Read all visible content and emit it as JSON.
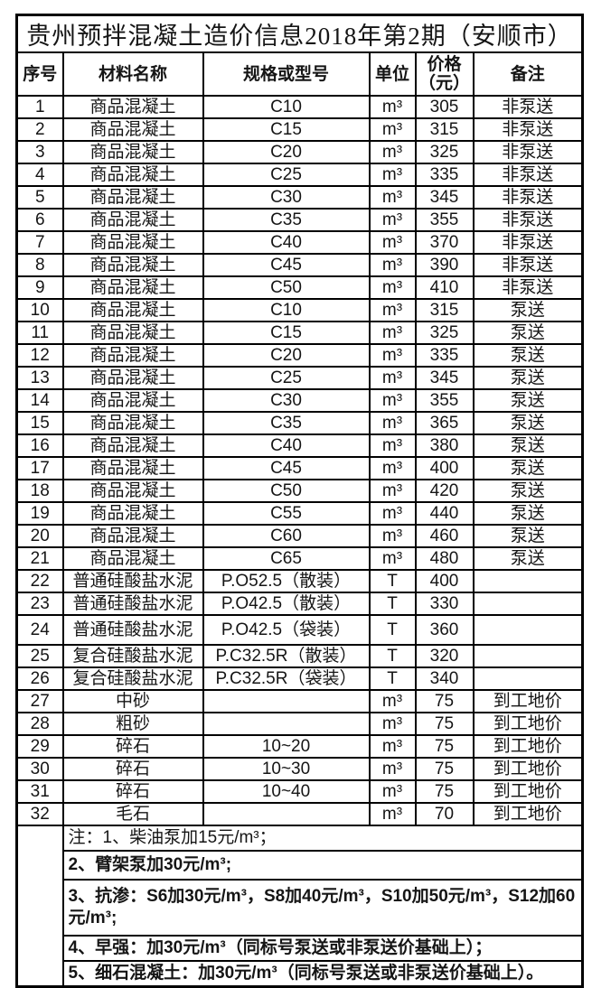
{
  "title": "贵州预拌混凝土造价信息2018年第2期（安顺市）",
  "columns": {
    "seq": "序号",
    "material": "材料名称",
    "spec": "规格或型号",
    "unit": "单位",
    "price_line1": "价格",
    "price_line2": "（元）",
    "remark": "备注"
  },
  "rows": [
    {
      "seq": "1",
      "material": "商品混凝土",
      "spec": "C10",
      "unit": "m³",
      "price": "305",
      "remark": "非泵送"
    },
    {
      "seq": "2",
      "material": "商品混凝土",
      "spec": "C15",
      "unit": "m³",
      "price": "315",
      "remark": "非泵送"
    },
    {
      "seq": "3",
      "material": "商品混凝土",
      "spec": "C20",
      "unit": "m³",
      "price": "325",
      "remark": "非泵送"
    },
    {
      "seq": "4",
      "material": "商品混凝土",
      "spec": "C25",
      "unit": "m³",
      "price": "335",
      "remark": "非泵送"
    },
    {
      "seq": "5",
      "material": "商品混凝土",
      "spec": "C30",
      "unit": "m³",
      "price": "345",
      "remark": "非泵送"
    },
    {
      "seq": "6",
      "material": "商品混凝土",
      "spec": "C35",
      "unit": "m³",
      "price": "355",
      "remark": "非泵送"
    },
    {
      "seq": "7",
      "material": "商品混凝土",
      "spec": "C40",
      "unit": "m³",
      "price": "370",
      "remark": "非泵送"
    },
    {
      "seq": "8",
      "material": "商品混凝土",
      "spec": "C45",
      "unit": "m³",
      "price": "390",
      "remark": "非泵送"
    },
    {
      "seq": "9",
      "material": "商品混凝土",
      "spec": "C50",
      "unit": "m³",
      "price": "410",
      "remark": "非泵送"
    },
    {
      "seq": "10",
      "material": "商品混凝土",
      "spec": "C10",
      "unit": "m³",
      "price": "315",
      "remark": "泵送"
    },
    {
      "seq": "11",
      "material": "商品混凝土",
      "spec": "C15",
      "unit": "m³",
      "price": "325",
      "remark": "泵送"
    },
    {
      "seq": "12",
      "material": "商品混凝土",
      "spec": "C20",
      "unit": "m³",
      "price": "335",
      "remark": "泵送"
    },
    {
      "seq": "13",
      "material": "商品混凝土",
      "spec": "C25",
      "unit": "m³",
      "price": "345",
      "remark": "泵送"
    },
    {
      "seq": "14",
      "material": "商品混凝土",
      "spec": "C30",
      "unit": "m³",
      "price": "355",
      "remark": "泵送"
    },
    {
      "seq": "15",
      "material": "商品混凝土",
      "spec": "C35",
      "unit": "m³",
      "price": "365",
      "remark": "泵送"
    },
    {
      "seq": "16",
      "material": "商品混凝土",
      "spec": "C40",
      "unit": "m³",
      "price": "380",
      "remark": "泵送"
    },
    {
      "seq": "17",
      "material": "商品混凝土",
      "spec": "C45",
      "unit": "m³",
      "price": "400",
      "remark": "泵送"
    },
    {
      "seq": "18",
      "material": "商品混凝土",
      "spec": "C50",
      "unit": "m³",
      "price": "420",
      "remark": "泵送"
    },
    {
      "seq": "19",
      "material": "商品混凝土",
      "spec": "C55",
      "unit": "m³",
      "price": "440",
      "remark": "泵送"
    },
    {
      "seq": "20",
      "material": "商品混凝土",
      "spec": "C60",
      "unit": "m³",
      "price": "460",
      "remark": "泵送"
    },
    {
      "seq": "21",
      "material": "商品混凝土",
      "spec": "C65",
      "unit": "m³",
      "price": "480",
      "remark": "泵送"
    },
    {
      "seq": "22",
      "material": "普通硅酸盐水泥",
      "spec": "P.O52.5（散装）",
      "unit": "T",
      "price": "400",
      "remark": ""
    },
    {
      "seq": "23",
      "material": "普通硅酸盐水泥",
      "spec": "P.O42.5（散装）",
      "unit": "T",
      "price": "330",
      "remark": ""
    },
    {
      "seq": "24",
      "material": "普通硅酸盐水泥",
      "spec": "P.O42.5（袋装）",
      "unit": "T",
      "price": "360",
      "remark": ""
    },
    {
      "seq": "25",
      "material": "复合硅酸盐水泥",
      "spec": "P.C32.5R（散装）",
      "unit": "T",
      "price": "320",
      "remark": ""
    },
    {
      "seq": "26",
      "material": "复合硅酸盐水泥",
      "spec": "P.C32.5R（袋装）",
      "unit": "T",
      "price": "340",
      "remark": ""
    },
    {
      "seq": "27",
      "material": "中砂",
      "spec": "",
      "unit": "m³",
      "price": "75",
      "remark": "到工地价"
    },
    {
      "seq": "28",
      "material": "粗砂",
      "spec": "",
      "unit": "m³",
      "price": "75",
      "remark": "到工地价"
    },
    {
      "seq": "29",
      "material": "碎石",
      "spec": "10~20",
      "unit": "m³",
      "price": "75",
      "remark": "到工地价"
    },
    {
      "seq": "30",
      "material": "碎石",
      "spec": "10~30",
      "unit": "m³",
      "price": "75",
      "remark": "到工地价"
    },
    {
      "seq": "31",
      "material": "碎石",
      "spec": "10~40",
      "unit": "m³",
      "price": "75",
      "remark": "到工地价"
    },
    {
      "seq": "32",
      "material": "毛石",
      "spec": "",
      "unit": "m³",
      "price": "70",
      "remark": "到工地价"
    }
  ],
  "notes": {
    "items": [
      "注：1、柴油泵加15元/m³；",
      "2、臂架泵加30元/m³;",
      "3、抗渗：S6加30元/m³，S8加40元/m³，S10加50元/m³，S12加60元/m³;",
      "4、早强：加30元/m³（同标号泵送或非泵送价基础上）；",
      "5、细石混凝土：加30元/m³（同标号泵送或非泵送价基础上）。"
    ]
  },
  "colors": {
    "border": "#000000",
    "text": "#151515",
    "background": "#ffffff"
  }
}
